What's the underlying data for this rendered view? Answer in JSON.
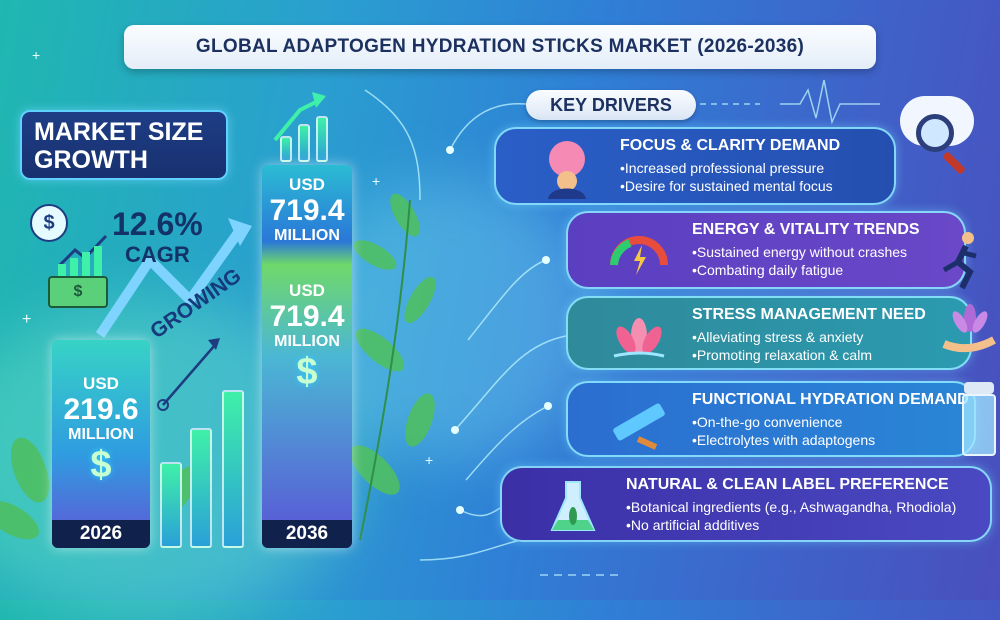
{
  "title": "GLOBAL ADAPTOGEN HYDRATION STICKS MARKET (2026-2036)",
  "market_size": {
    "line1": "MARKET SIZE",
    "line2": "GROWTH"
  },
  "cagr": {
    "value": "12.6%",
    "label": "CAGR"
  },
  "growing_label": "GROWING",
  "bars": [
    {
      "currency": "USD",
      "value": "219.6",
      "unit": "MILLION",
      "symbol": "$",
      "year": "2026"
    },
    {
      "currency": "USD",
      "value": "719.4",
      "unit": "MILLION",
      "currency_repeat": "USD",
      "value_repeat": "719.4",
      "unit_repeat": "MILLION",
      "symbol": "$",
      "year": "2036"
    }
  ],
  "key_drivers_label": "KEY DRIVERS",
  "drivers": [
    {
      "title": "FOCUS & CLARITY DEMAND",
      "points": [
        "Increased professional pressure",
        "Desire for sustained mental focus"
      ],
      "icon": "brain-person-icon"
    },
    {
      "title": "ENERGY & VITALITY TRENDS",
      "points": [
        "Sustained energy without crashes",
        "Combating daily fatigue"
      ],
      "icon": "energy-gauge-icon"
    },
    {
      "title": "STRESS MANAGEMENT NEED",
      "points": [
        "Alleviating stress & anxiety",
        "Promoting relaxation & calm"
      ],
      "icon": "lotus-icon"
    },
    {
      "title": "FUNCTIONAL HYDRATION DEMAND",
      "points": [
        "On-the-go convenience",
        "Electrolytes with adaptogens"
      ],
      "icon": "hydration-stick-icon"
    },
    {
      "title": "NATURAL & CLEAN LABEL PREFERENCE",
      "points": [
        "Botanical ingredients (e.g., Ashwagandha, Rhodiola)",
        "No artificial additives"
      ],
      "icon": "flask-leaf-icon"
    }
  ],
  "colors": {
    "title_text": "#1d3160",
    "card_border": "#8ce6ff",
    "accent_green": "#3ff0a8"
  }
}
